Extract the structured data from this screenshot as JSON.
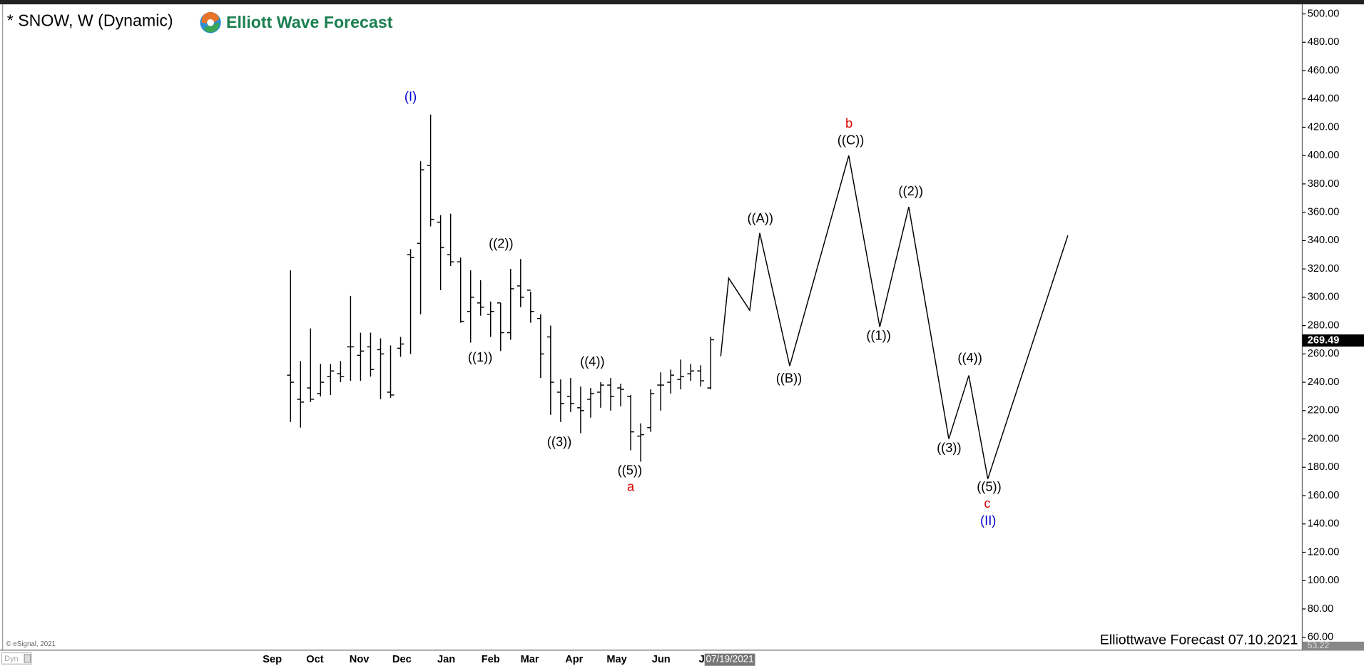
{
  "chart_data": {
    "type": "ohlc",
    "title": "* SNOW, W (Dynamic)",
    "logo_text": "Elliott Wave Forecast",
    "footer": "Elliottwave Forecast 07.10.2021",
    "copyright": "© eSignal, 2021",
    "mode_label": "Dyn",
    "cursor_date": "07/19/2021",
    "color": "#000000",
    "open": [
      245,
      228,
      236,
      232,
      244,
      246,
      265,
      259,
      265,
      263,
      233,
      264,
      330,
      338,
      393,
      353,
      330,
      325,
      290,
      296,
      288,
      296,
      275,
      308,
      305,
      285,
      272,
      233,
      230,
      222,
      228,
      233,
      238,
      236,
      230,
      202,
      208,
      238,
      240,
      242,
      246,
      248,
      236
    ],
    "high": [
      319,
      255,
      278,
      253,
      253,
      255,
      301,
      275,
      275,
      271,
      266,
      272,
      334,
      396,
      429,
      358,
      359,
      328,
      319,
      312,
      297,
      296,
      320,
      327,
      304,
      288,
      280,
      242,
      243,
      237,
      236,
      240,
      243,
      239,
      231,
      211,
      235,
      247,
      249,
      256,
      253,
      252,
      272
    ],
    "low": [
      212,
      208,
      226,
      230,
      231,
      240,
      241,
      241,
      244,
      228,
      229,
      258,
      260,
      288,
      350,
      305,
      322,
      282,
      268,
      287,
      272,
      262,
      270,
      293,
      282,
      243,
      217,
      212,
      219,
      204,
      215,
      222,
      220,
      223,
      192,
      184,
      205,
      220,
      232,
      235,
      241,
      237,
      235
    ],
    "close": [
      240,
      226,
      228,
      240,
      248,
      244,
      265,
      262,
      249,
      260,
      231,
      267,
      328,
      390,
      355,
      335,
      325,
      283,
      300,
      293,
      290,
      275,
      306,
      300,
      290,
      260,
      240,
      225,
      225,
      220,
      232,
      238,
      230,
      235,
      205,
      203,
      232,
      238,
      245,
      244,
      248,
      241,
      270
    ],
    "xlabels": [
      "Sep",
      "Oct",
      "Nov",
      "Dec",
      "Jan",
      "Feb",
      "Mar",
      "Apr",
      "May",
      "Jun",
      "Jul"
    ],
    "projection": {
      "color": "#000000",
      "x": [
        43,
        43.8,
        45.9,
        46.9,
        49.9,
        55.8,
        58.9,
        61.8,
        65.8,
        67.8,
        69.7,
        77.7
      ],
      "values": [
        258.3,
        313.5,
        290.8,
        345.4,
        251.5,
        400.0,
        279.1,
        363.8,
        200.0,
        244.8,
        171.8,
        343.6
      ]
    },
    "annotations": [
      {
        "text": "(I)",
        "color": "#0000cc"
      },
      {
        "text": "((1))",
        "color": "#000000"
      },
      {
        "text": "((2))",
        "color": "#000000"
      },
      {
        "text": "((3))",
        "color": "#000000"
      },
      {
        "text": "((4))",
        "color": "#000000"
      },
      {
        "text": "((5))",
        "color": "#000000"
      },
      {
        "text": "a",
        "color": "#dd0000"
      },
      {
        "text": "((A))",
        "color": "#000000"
      },
      {
        "text": "((B))",
        "color": "#000000"
      },
      {
        "text": "b",
        "color": "#dd0000"
      },
      {
        "text": "((C))",
        "color": "#000000"
      },
      {
        "text": "((1))",
        "color": "#000000"
      },
      {
        "text": "((2))",
        "color": "#000000"
      },
      {
        "text": "((3))",
        "color": "#000000"
      },
      {
        "text": "((4))",
        "color": "#000000"
      },
      {
        "text": "((5))",
        "color": "#000000"
      },
      {
        "text": "c",
        "color": "#dd0000"
      },
      {
        "text": "(II)",
        "color": "#0000cc"
      }
    ],
    "last_price": {
      "value": 269.49,
      "label": "269.49"
    },
    "low_marker": {
      "value": 53.22,
      "label": "53.22"
    },
    "ylim": [
      60,
      500
    ],
    "yticks": [
      {
        "value": 60,
        "label": "60.00"
      },
      {
        "value": 80,
        "label": "80.00"
      },
      {
        "value": 100,
        "label": "100.00"
      },
      {
        "value": 120,
        "label": "120.00"
      },
      {
        "value": 140,
        "label": "140.00"
      },
      {
        "value": 160,
        "label": "160.00"
      },
      {
        "value": 180,
        "label": "180.00"
      },
      {
        "value": 200,
        "label": "200.00"
      },
      {
        "value": 220,
        "label": "220.00"
      },
      {
        "value": 240,
        "label": "240.00"
      },
      {
        "value": 260,
        "label": "260.00"
      },
      {
        "value": 280,
        "label": "280.00"
      },
      {
        "value": 300,
        "label": "300.00"
      },
      {
        "value": 320,
        "label": "320.00"
      },
      {
        "value": 340,
        "label": "340.00"
      },
      {
        "value": 360,
        "label": "360.00"
      },
      {
        "value": 380,
        "label": "380.00"
      },
      {
        "value": 400,
        "label": "400.00"
      },
      {
        "value": 420,
        "label": "420.00"
      },
      {
        "value": 440,
        "label": "440.00"
      },
      {
        "value": 460,
        "label": "460.00"
      },
      {
        "value": 480,
        "label": "480.00"
      },
      {
        "value": 500,
        "label": "500.00"
      }
    ],
    "grid": false
  }
}
